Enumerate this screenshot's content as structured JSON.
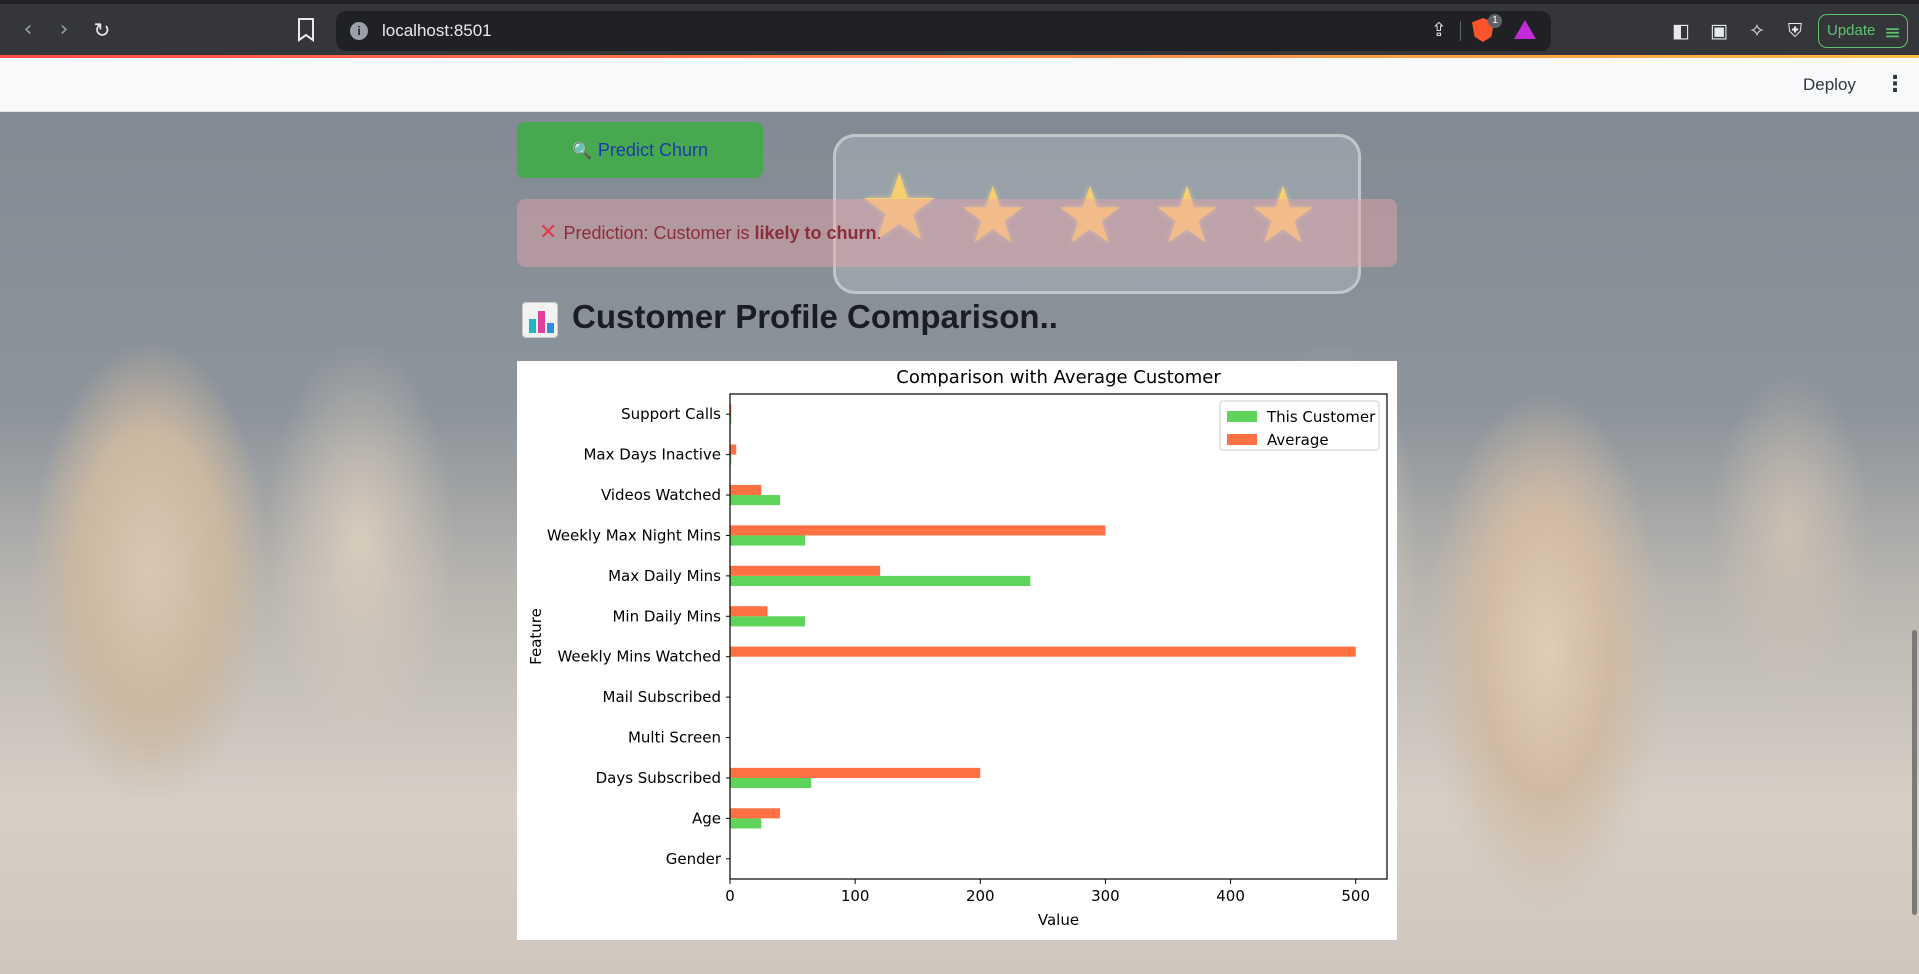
{
  "browser": {
    "url": "localhost:8501",
    "update_label": "Update",
    "brave_badge_count": "1"
  },
  "header": {
    "deploy_label": "Deploy"
  },
  "main": {
    "predict_button_label": "Predict Churn",
    "alert_prefix": "Prediction: Customer is ",
    "alert_emphasis": "likely to churn",
    "alert_suffix": ".",
    "section_title": "Customer Profile Comparison.."
  },
  "colors": {
    "this_customer": "#5ed45a",
    "average": "#ff7043",
    "predict_button": "#46a84f",
    "alert_text": "#8e2d3a"
  },
  "icons": {
    "predict_button": "magnifier-icon",
    "alert": "cross-mark-icon",
    "section": "bar-chart-icon"
  },
  "chart_data": {
    "type": "bar",
    "orientation": "horizontal",
    "title": "Comparison with Average Customer",
    "xlabel": "Value",
    "ylabel": "Feature",
    "xlim": [
      0,
      525
    ],
    "xticks": [
      0,
      100,
      200,
      300,
      400,
      500
    ],
    "categories": [
      "Gender",
      "Age",
      "Days Subscribed",
      "Multi Screen",
      "Mail Subscribed",
      "Weekly Mins Watched",
      "Min Daily Mins",
      "Max Daily Mins",
      "Weekly Max Night Mins",
      "Videos Watched",
      "Max Days Inactive",
      "Support Calls"
    ],
    "series": [
      {
        "name": "This Customer",
        "values": [
          0,
          25,
          65,
          0,
          0,
          0,
          60,
          240,
          60,
          40,
          1,
          1
        ]
      },
      {
        "name": "Average",
        "values": [
          0,
          40,
          200,
          0,
          0,
          500,
          30,
          120,
          300,
          25,
          5,
          1
        ]
      }
    ],
    "legend": "top-right",
    "grid": false
  }
}
